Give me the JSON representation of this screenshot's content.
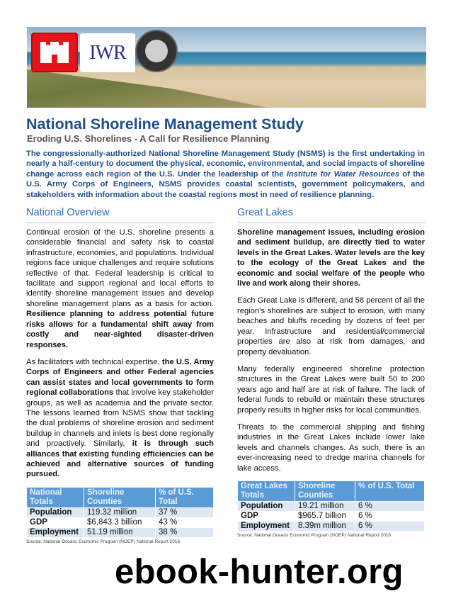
{
  "banner": {
    "logos": [
      "US Army Corps of Engineers castle",
      "IWR",
      "National Shoreline Management Study"
    ],
    "iwr_text": "IWR"
  },
  "header": {
    "title": "National Shoreline Management Study",
    "subtitle": "Eroding U.S. Shorelines - A Call for Resilience Planning"
  },
  "intro": {
    "part1": "The congressionally-authorized National Shoreline Management Study (NSMS) is the first undertaking in nearly a half-century to document the physical, economic, environmental, and social impacts of shoreline change across each region of the U.S. Under the leadership of the ",
    "italic": "Institute for Water Resources",
    "part2": " of the U.S. Army Corps of Engineers, NSMS provides coastal scientists, government policymakers, and stakeholders with information about the coastal regions most in need of resilience planning."
  },
  "national": {
    "heading": "National Overview",
    "p1": {
      "text": "Continual erosion of the U.S. shoreline presents a considerable financial and safety risk to coastal infrastructure, economies, and populations. Individual regions face unique challenges and require solutions reflective of that. Federal leadership is critical to facilitate and support regional and local efforts to identify shoreline management issues and develop shoreline management plans as a basis for action. ",
      "bold": "Resilience planning to address potential future risks allows for a fundamental shift away from costly and near-sighted disaster-driven responses."
    },
    "p2": {
      "a": "As facilitators with technical expertise, ",
      "b": "the U.S. Army Corps of Engineers and other Federal agencies can assist states and local governments to form regional collaborations",
      "c": " that involve key stakeholder groups, as well as academia and the private sector. The lessons learned from NSMS show that tackling the dual problems of shoreline erosion and sediment buildup in channels and inlets is best done regionally and proactively. Similarly, ",
      "d": "it is through such alliances that existing funding efficiencies can be achieved and alternative sources of funding pursued."
    },
    "table": {
      "headers": [
        "National Totals",
        "Shoreline Counties",
        "% of U.S. Total"
      ],
      "rows": [
        [
          "Population",
          "119.32 million",
          "37 %"
        ],
        [
          "GDP",
          "$6,843.3 billion",
          "43 %"
        ],
        [
          "Employment",
          "51.19 million",
          "38 %"
        ]
      ]
    },
    "source": "Source: National Oceans Economic Program (NOEP) National Report 2016"
  },
  "great_lakes": {
    "heading": "Great Lakes",
    "p1": "Shoreline management issues, including erosion and sediment buildup, are directly tied to water levels in the Great Lakes. Water levels are the key to the ecology of the Great Lakes and the economic and social welfare of the people who live and work along their shores.",
    "p2": "Each Great Lake is different, and 58 percent of all the region’s shorelines are subject to erosion, with many beaches and bluffs receding by dozens of feet per year. Infrastructure and residential/commercial properties are also at risk from damages, and property devaluation.",
    "p3": "Many federally engineered shoreline protection structures in the Great Lakes were built 50 to 200 years ago and half are at risk of failure. The lack of federal funds to rebuild or maintain these structures properly results in higher risks for local communities.",
    "p4": "Threats to the commercial shipping and fishing industries in the Great Lakes include lower lake levels and channels changes. As such, there is an ever-increasing need to dredge marina channels for lake access.",
    "table": {
      "headers": [
        "Great Lakes Totals",
        "Shoreline Counties",
        "% of U.S. Total"
      ],
      "rows": [
        [
          "Population",
          "19.21 million",
          "6 %"
        ],
        [
          "GDP",
          "$965.7 billion",
          "6 %"
        ],
        [
          "Employment",
          "8.39m million",
          "6 %"
        ]
      ]
    },
    "source": "Source: National Oceans Economic Program (NOEP) National Report 2016"
  },
  "watermark": "ebook-hunter.org",
  "colors": {
    "title": "#1f4e8c",
    "heading": "#2f6db5",
    "table_header": "#5b9bd5",
    "table_stripe": "#dde8f4"
  }
}
